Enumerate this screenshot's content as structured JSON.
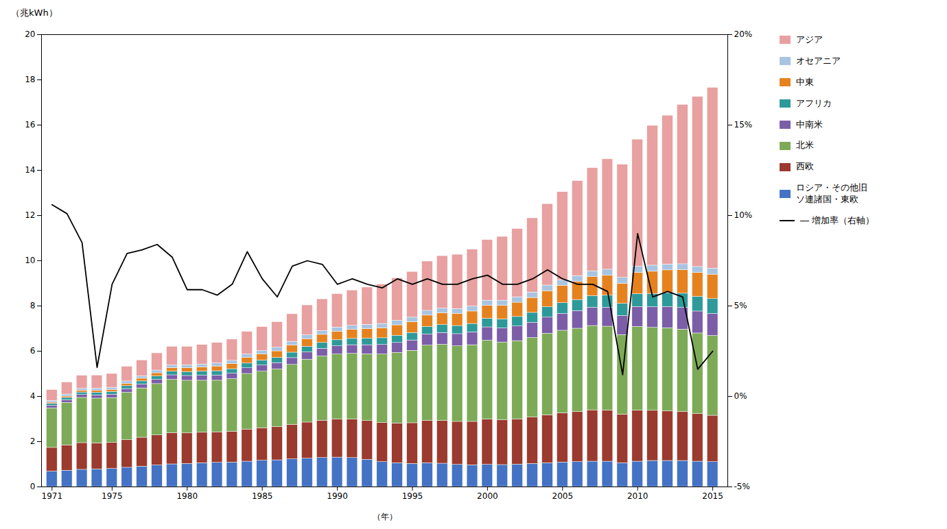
{
  "chart_data": {
    "type": "bar",
    "stacked": true,
    "title": "（兆kWh）",
    "xlabel": "（年）",
    "x": [
      1971,
      1972,
      1973,
      1974,
      1975,
      1976,
      1977,
      1978,
      1979,
      1980,
      1981,
      1982,
      1983,
      1984,
      1985,
      1986,
      1987,
      1988,
      1989,
      1990,
      1991,
      1992,
      1993,
      1994,
      1995,
      1996,
      1997,
      1998,
      1999,
      2000,
      2001,
      2002,
      2003,
      2004,
      2005,
      2006,
      2007,
      2008,
      2009,
      2010,
      2011,
      2012,
      2013,
      2014,
      2015
    ],
    "xlim": [
      1970.3,
      2016.0
    ],
    "xticks": [
      1971,
      1975,
      1980,
      1985,
      1990,
      1995,
      2000,
      2005,
      2010,
      2015
    ],
    "ylim": [
      0,
      20
    ],
    "yticks": [
      0,
      2,
      4,
      6,
      8,
      10,
      12,
      14,
      16,
      18,
      20
    ],
    "y2lim": [
      -5,
      20
    ],
    "y2ticks": [
      {
        "value": -5,
        "label": "-5%"
      },
      {
        "value": 0,
        "label": "0%"
      },
      {
        "value": 5,
        "label": "5%"
      },
      {
        "value": 10,
        "label": "10%"
      },
      {
        "value": 15,
        "label": "15%"
      },
      {
        "value": 20,
        "label": "20%"
      }
    ],
    "grid": false,
    "legend": "right",
    "series": [
      {
        "name": "ロシア・その他旧\nソ連諸国・東欧",
        "type": "bar",
        "color": "#4472c4",
        "values": [
          0.68,
          0.72,
          0.76,
          0.78,
          0.8,
          0.85,
          0.9,
          0.95,
          1.0,
          1.02,
          1.05,
          1.07,
          1.08,
          1.12,
          1.16,
          1.18,
          1.22,
          1.25,
          1.28,
          1.3,
          1.28,
          1.2,
          1.1,
          1.05,
          1.02,
          1.05,
          1.03,
          0.98,
          0.96,
          0.98,
          0.97,
          0.99,
          1.02,
          1.05,
          1.08,
          1.1,
          1.12,
          1.12,
          1.05,
          1.12,
          1.15,
          1.15,
          1.15,
          1.12,
          1.1
        ]
      },
      {
        "name": "西欧",
        "type": "bar",
        "color": "#9b3a2e",
        "values": [
          1.05,
          1.12,
          1.18,
          1.15,
          1.15,
          1.22,
          1.28,
          1.33,
          1.38,
          1.35,
          1.35,
          1.35,
          1.36,
          1.42,
          1.44,
          1.47,
          1.53,
          1.6,
          1.65,
          1.68,
          1.7,
          1.72,
          1.73,
          1.76,
          1.8,
          1.88,
          1.9,
          1.9,
          1.92,
          2.0,
          1.98,
          2.0,
          2.05,
          2.12,
          2.18,
          2.22,
          2.27,
          2.26,
          2.15,
          2.26,
          2.22,
          2.2,
          2.17,
          2.1,
          2.05
        ]
      },
      {
        "name": "北米",
        "type": "bar",
        "color": "#7daa57",
        "values": [
          1.75,
          1.88,
          2.0,
          1.98,
          1.98,
          2.1,
          2.18,
          2.27,
          2.36,
          2.33,
          2.3,
          2.28,
          2.33,
          2.46,
          2.5,
          2.55,
          2.65,
          2.78,
          2.84,
          2.88,
          2.91,
          2.95,
          3.03,
          3.12,
          3.2,
          3.32,
          3.36,
          3.34,
          3.39,
          3.49,
          3.44,
          3.46,
          3.52,
          3.61,
          3.65,
          3.68,
          3.73,
          3.71,
          3.52,
          3.7,
          3.67,
          3.67,
          3.64,
          3.57,
          3.53
        ]
      },
      {
        "name": "中南米",
        "type": "bar",
        "color": "#7b5ea7",
        "values": [
          0.11,
          0.12,
          0.13,
          0.14,
          0.15,
          0.16,
          0.17,
          0.19,
          0.2,
          0.21,
          0.22,
          0.23,
          0.24,
          0.25,
          0.27,
          0.28,
          0.3,
          0.32,
          0.34,
          0.36,
          0.38,
          0.4,
          0.42,
          0.44,
          0.46,
          0.49,
          0.52,
          0.54,
          0.57,
          0.59,
          0.62,
          0.65,
          0.67,
          0.71,
          0.74,
          0.78,
          0.81,
          0.84,
          0.84,
          0.88,
          0.91,
          0.94,
          0.96,
          0.97,
          0.97
        ]
      },
      {
        "name": "アフリカ",
        "type": "bar",
        "color": "#2e9999",
        "values": [
          0.09,
          0.1,
          0.11,
          0.12,
          0.12,
          0.13,
          0.14,
          0.15,
          0.16,
          0.17,
          0.18,
          0.19,
          0.2,
          0.21,
          0.22,
          0.23,
          0.24,
          0.25,
          0.26,
          0.27,
          0.28,
          0.29,
          0.3,
          0.32,
          0.33,
          0.34,
          0.35,
          0.36,
          0.37,
          0.38,
          0.4,
          0.42,
          0.44,
          0.46,
          0.48,
          0.49,
          0.51,
          0.53,
          0.54,
          0.57,
          0.59,
          0.61,
          0.63,
          0.65,
          0.66
        ]
      },
      {
        "name": "中東",
        "type": "bar",
        "color": "#e6821e",
        "values": [
          0.05,
          0.06,
          0.07,
          0.08,
          0.09,
          0.1,
          0.12,
          0.14,
          0.16,
          0.17,
          0.19,
          0.21,
          0.23,
          0.25,
          0.27,
          0.29,
          0.32,
          0.34,
          0.36,
          0.38,
          0.4,
          0.42,
          0.44,
          0.46,
          0.48,
          0.5,
          0.52,
          0.54,
          0.55,
          0.57,
          0.6,
          0.63,
          0.66,
          0.71,
          0.76,
          0.8,
          0.84,
          0.88,
          0.89,
          0.94,
          0.98,
          1.01,
          1.04,
          1.06,
          1.08
        ]
      },
      {
        "name": "オセアニア",
        "type": "bar",
        "color": "#a8c4e0",
        "values": [
          0.08,
          0.09,
          0.09,
          0.1,
          0.1,
          0.11,
          0.11,
          0.12,
          0.12,
          0.13,
          0.13,
          0.14,
          0.14,
          0.15,
          0.15,
          0.16,
          0.16,
          0.17,
          0.17,
          0.18,
          0.18,
          0.19,
          0.19,
          0.2,
          0.2,
          0.21,
          0.21,
          0.21,
          0.22,
          0.23,
          0.23,
          0.24,
          0.24,
          0.25,
          0.25,
          0.26,
          0.26,
          0.27,
          0.26,
          0.27,
          0.27,
          0.26,
          0.26,
          0.26,
          0.26
        ]
      },
      {
        "name": "アジア",
        "type": "bar",
        "color": "#e8a0a0",
        "values": [
          0.48,
          0.53,
          0.58,
          0.58,
          0.61,
          0.65,
          0.7,
          0.76,
          0.82,
          0.82,
          0.86,
          0.9,
          0.94,
          1.0,
          1.06,
          1.13,
          1.22,
          1.32,
          1.4,
          1.48,
          1.56,
          1.65,
          1.75,
          1.88,
          2.02,
          2.18,
          2.32,
          2.4,
          2.52,
          2.68,
          2.82,
          3.02,
          3.28,
          3.6,
          3.9,
          4.2,
          4.56,
          4.88,
          5.0,
          5.62,
          6.18,
          6.58,
          7.05,
          7.52,
          8.0
        ]
      },
      {
        "name": "― 増加率（右軸）",
        "type": "line",
        "axis": "y2",
        "color": "black",
        "values": [
          10.6,
          10.1,
          8.5,
          1.6,
          6.2,
          7.9,
          8.1,
          8.4,
          7.7,
          5.9,
          5.9,
          5.6,
          6.2,
          8.0,
          6.5,
          5.5,
          7.2,
          7.5,
          7.3,
          6.2,
          6.5,
          6.2,
          6.0,
          6.5,
          6.2,
          6.5,
          6.2,
          6.2,
          6.5,
          6.7,
          6.2,
          6.2,
          6.5,
          7.0,
          6.5,
          6.2,
          6.2,
          5.8,
          1.2,
          9.0,
          5.5,
          5.8,
          5.5,
          1.5,
          2.5
        ]
      }
    ]
  }
}
